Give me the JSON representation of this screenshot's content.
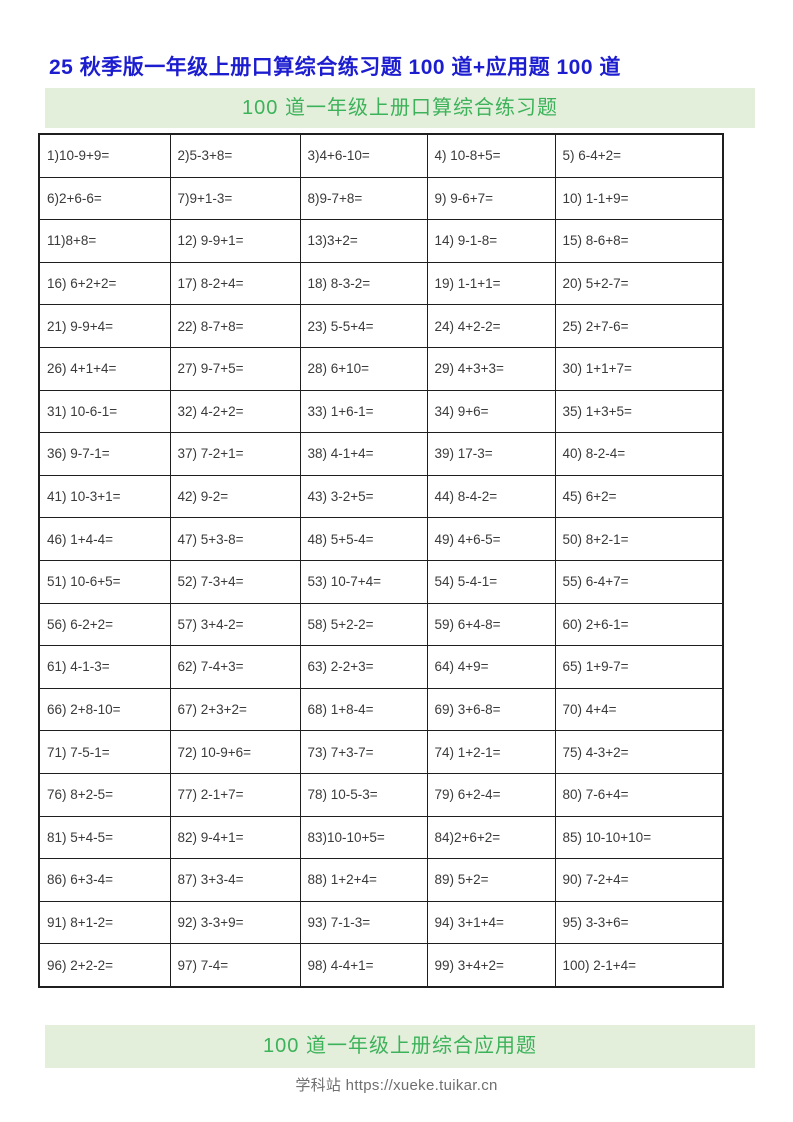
{
  "page": {
    "title": "25 秋季版一年级上册口算综合练习题 100 道+应用题 100 道",
    "section1_header": "100 道一年级上册口算综合练习题",
    "section2_header": "100 道一年级上册综合应用题",
    "footer": "学科站 https://xueke.tuikar.cn"
  },
  "colors": {
    "title_blue": "#1d1dd0",
    "header_green_text": "#3db25a",
    "header_green_bg": "#e3efdb",
    "cell_text": "#3a3a3a",
    "table_border": "#1f1f1f",
    "footer_gray": "#6f6f6f"
  },
  "table": {
    "rows": 20,
    "cols": 5
  },
  "problems": [
    "1)10-9+9=",
    "2)5-3+8=",
    "3)4+6-10=",
    "4) 10-8+5=",
    "5) 6-4+2=",
    "6)2+6-6=",
    "7)9+1-3=",
    "8)9-7+8=",
    "9) 9-6+7=",
    "10) 1-1+9=",
    "11)8+8=",
    "12) 9-9+1=",
    "13)3+2=",
    "14) 9-1-8=",
    "15) 8-6+8=",
    "16) 6+2+2=",
    "17) 8-2+4=",
    "18) 8-3-2=",
    "19) 1-1+1=",
    "20) 5+2-7=",
    "21) 9-9+4=",
    "22) 8-7+8=",
    "23) 5-5+4=",
    "24) 4+2-2=",
    "25) 2+7-6=",
    "26) 4+1+4=",
    "27) 9-7+5=",
    "28) 6+10=",
    "29) 4+3+3=",
    "30) 1+1+7=",
    "31) 10-6-1=",
    "32) 4-2+2=",
    "33) 1+6-1=",
    "34) 9+6=",
    "35) 1+3+5=",
    "36) 9-7-1=",
    "37) 7-2+1=",
    "38) 4-1+4=",
    "39) 17-3=",
    "40) 8-2-4=",
    "41) 10-3+1=",
    "42) 9-2=",
    "43) 3-2+5=",
    "44) 8-4-2=",
    "45) 6+2=",
    "46) 1+4-4=",
    "47) 5+3-8=",
    "48) 5+5-4=",
    "49) 4+6-5=",
    "50) 8+2-1=",
    "51) 10-6+5=",
    "52) 7-3+4=",
    "53) 10-7+4=",
    "54) 5-4-1=",
    "55) 6-4+7=",
    "56) 6-2+2=",
    "57) 3+4-2=",
    "58) 5+2-2=",
    "59) 6+4-8=",
    "60) 2+6-1=",
    "61) 4-1-3=",
    "62) 7-4+3=",
    "63) 2-2+3=",
    "64) 4+9=",
    "65) 1+9-7=",
    "66) 2+8-10=",
    "67) 2+3+2=",
    "68) 1+8-4=",
    "69) 3+6-8=",
    "70) 4+4=",
    "71) 7-5-1=",
    "72) 10-9+6=",
    "73) 7+3-7=",
    "74) 1+2-1=",
    "75) 4-3+2=",
    "76) 8+2-5=",
    "77) 2-1+7=",
    "78) 10-5-3=",
    "79) 6+2-4=",
    "80) 7-6+4=",
    "81) 5+4-5=",
    "82) 9-4+1=",
    "83)10-10+5=",
    "84)2+6+2=",
    "85) 10-10+10=",
    "86) 6+3-4=",
    "87) 3+3-4=",
    "88) 1+2+4=",
    "89) 5+2=",
    "90) 7-2+4=",
    "91) 8+1-2=",
    "92) 3-3+9=",
    "93) 7-1-3=",
    "94) 3+1+4=",
    "95) 3-3+6=",
    "96) 2+2-2=",
    "97) 7-4=",
    "98) 4-4+1=",
    "99) 3+4+2=",
    "100) 2-1+4="
  ]
}
